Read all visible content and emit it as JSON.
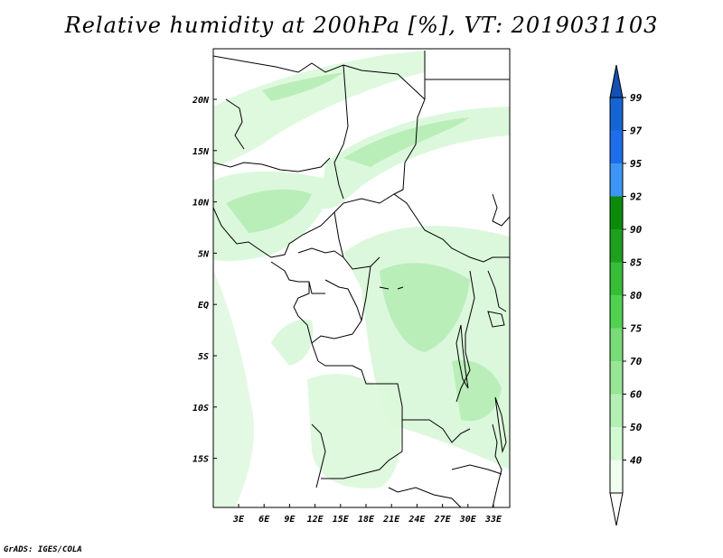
{
  "title": "Relative humidity at 200hPa [%], VT: 2019031103",
  "credit": "GrADS: IGES/COLA",
  "map": {
    "lon_labels": [
      "3E",
      "6E",
      "9E",
      "12E",
      "15E",
      "18E",
      "21E",
      "24E",
      "27E",
      "30E",
      "33E"
    ],
    "lat_labels": [
      "20N",
      "15N",
      "10N",
      "5N",
      "EQ",
      "5S",
      "10S",
      "15S"
    ],
    "land_color": "#ffffff",
    "border_color": "#000000"
  },
  "colorbar": {
    "levels": [
      "99",
      "97",
      "95",
      "92",
      "90",
      "85",
      "80",
      "75",
      "70",
      "60",
      "50",
      "40"
    ],
    "colors": [
      "#1464d2",
      "#1e6eeb",
      "#3c96f5",
      "#0a8c0a",
      "#1ea01e",
      "#37be37",
      "#50d250",
      "#78dc78",
      "#96e696",
      "#b4f0b4",
      "#d2fad2",
      "#f0fff0"
    ],
    "top_color": "#1450b4",
    "bottom_color": "#ffffff"
  }
}
